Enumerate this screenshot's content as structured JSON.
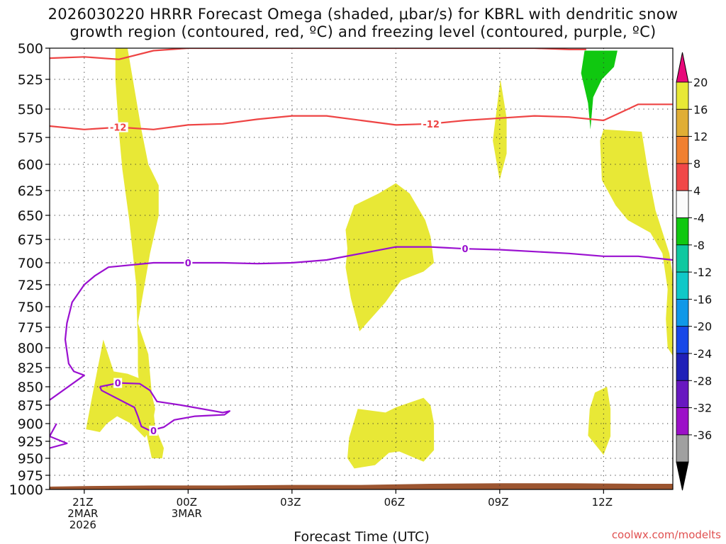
{
  "title": {
    "line1": "2026030220 HRRR Forecast Omega (shaded, μbar/s) for KBRL with dendritic snow",
    "line2": "growth region (contoured, red, ºC) and freezing level (contoured, purple, ºC)"
  },
  "credit": "coolwx.com/modelts",
  "chart_data": {
    "type": "contour-timeheight",
    "title": "2026030220 HRRR Forecast Omega (shaded, μbar/s) for KBRL with dendritic snow growth region (contoured, red, ºC) and freezing level (contoured, purple, ºC)",
    "xlabel": "Forecast Time (UTC)",
    "ylabel": "Pressure (hPa)",
    "ylim": [
      1000,
      500
    ],
    "xlim_hours": [
      -1,
      17
    ],
    "x_ticks": [
      {
        "hour": 0,
        "lines": [
          "21Z",
          "2MAR",
          "2026"
        ]
      },
      {
        "hour": 3,
        "lines": [
          "00Z",
          "3MAR"
        ]
      },
      {
        "hour": 6,
        "lines": [
          "03Z"
        ]
      },
      {
        "hour": 9,
        "lines": [
          "06Z"
        ]
      },
      {
        "hour": 12,
        "lines": [
          "09Z"
        ]
      },
      {
        "hour": 15,
        "lines": [
          "12Z"
        ]
      }
    ],
    "y_ticks": [
      500,
      525,
      550,
      575,
      600,
      625,
      650,
      675,
      700,
      725,
      750,
      775,
      800,
      825,
      850,
      875,
      900,
      925,
      950,
      975,
      1000
    ],
    "grid": true,
    "colorbar": {
      "labels": [
        "20",
        "16",
        "12",
        "8",
        "4",
        "-4",
        "-8",
        "-12",
        "-16",
        "-20",
        "-24",
        "-28",
        "-32",
        "-36"
      ],
      "colors": [
        "#e8e836",
        "#e0ae35",
        "#f08030",
        "#f04848",
        "#fbfbfb",
        "#10c810",
        "#10c8a0",
        "#10c8c8",
        "#1098e8",
        "#1848e8",
        "#2020b8",
        "#6818c0",
        "#9c10c8",
        "#a0a0a0"
      ],
      "under_color": "#000000",
      "over_color": "#e8087a"
    },
    "shaded_regions": [
      {
        "name": "upward-motion-col-01z",
        "level": "4 to 8",
        "points": [
          [
            0.9,
            500
          ],
          [
            1.25,
            500
          ],
          [
            1.65,
            568
          ],
          [
            1.85,
            600
          ],
          [
            2.15,
            620
          ],
          [
            2.15,
            650
          ],
          [
            1.9,
            690
          ],
          [
            1.55,
            770
          ],
          [
            1.85,
            808
          ],
          [
            1.95,
            860
          ],
          [
            2.05,
            905
          ],
          [
            2.3,
            935
          ],
          [
            2.25,
            950
          ],
          [
            1.95,
            950
          ],
          [
            1.8,
            915
          ],
          [
            1.65,
            875
          ],
          [
            1.55,
            830
          ],
          [
            1.55,
            800
          ],
          [
            1.5,
            725
          ],
          [
            1.3,
            655
          ],
          [
            1.1,
            605
          ],
          [
            1.0,
            570
          ],
          [
            0.9,
            525
          ]
        ]
      },
      {
        "name": "upward-motion-0630z",
        "level": "4 to 8",
        "points": [
          [
            7.8,
            640
          ],
          [
            8.5,
            628
          ],
          [
            9.0,
            618
          ],
          [
            9.4,
            628
          ],
          [
            9.85,
            655
          ],
          [
            10.0,
            672
          ],
          [
            10.1,
            700
          ],
          [
            9.8,
            710
          ],
          [
            9.15,
            720
          ],
          [
            8.7,
            745
          ],
          [
            7.95,
            780
          ],
          [
            7.7,
            740
          ],
          [
            7.55,
            705
          ],
          [
            7.6,
            685
          ],
          [
            7.55,
            665
          ]
        ]
      },
      {
        "name": "upward-motion-0930z",
        "level": "4 to 8",
        "points": [
          [
            7.9,
            880
          ],
          [
            8.7,
            885
          ],
          [
            9.0,
            878
          ],
          [
            9.8,
            865
          ],
          [
            10.0,
            875
          ],
          [
            10.1,
            900
          ],
          [
            10.1,
            938
          ],
          [
            9.8,
            955
          ],
          [
            9.1,
            940
          ],
          [
            8.8,
            942
          ],
          [
            8.4,
            960
          ],
          [
            7.8,
            965
          ],
          [
            7.6,
            950
          ],
          [
            7.65,
            920
          ]
        ]
      },
      {
        "name": "upward-motion-1145z",
        "level": "4 to 8",
        "points": [
          [
            12.02,
            525
          ],
          [
            12.2,
            558
          ],
          [
            12.2,
            590
          ],
          [
            12.0,
            615
          ],
          [
            11.8,
            578
          ]
        ]
      },
      {
        "name": "upward-motion-1445z",
        "level": "4 to 8",
        "points": [
          [
            15.0,
            568
          ],
          [
            16.1,
            570
          ],
          [
            16.3,
            610
          ],
          [
            16.5,
            645
          ],
          [
            16.9,
            690
          ],
          [
            17.0,
            715
          ],
          [
            17.0,
            810
          ],
          [
            16.85,
            800
          ],
          [
            16.8,
            765
          ],
          [
            16.85,
            730
          ],
          [
            16.7,
            690
          ],
          [
            16.35,
            668
          ],
          [
            15.7,
            655
          ],
          [
            15.35,
            640
          ],
          [
            14.95,
            615
          ],
          [
            14.9,
            578
          ]
        ]
      },
      {
        "name": "upward-motion-2230z",
        "level": "4 to 8",
        "points": [
          [
            0.2,
            870
          ],
          [
            0.55,
            790
          ],
          [
            0.85,
            830
          ],
          [
            1.25,
            833
          ],
          [
            1.65,
            840
          ],
          [
            1.95,
            860
          ],
          [
            2.05,
            880
          ],
          [
            1.95,
            905
          ],
          [
            1.75,
            920
          ],
          [
            1.35,
            900
          ],
          [
            0.95,
            890
          ],
          [
            0.65,
            900
          ],
          [
            0.45,
            912
          ],
          [
            0.05,
            908
          ]
        ]
      },
      {
        "name": "upward-motion-1430z",
        "level": "4 to 8",
        "points": [
          [
            14.6,
            880
          ],
          [
            14.75,
            858
          ],
          [
            15.1,
            850
          ],
          [
            15.2,
            880
          ],
          [
            15.2,
            918
          ],
          [
            15.0,
            945
          ],
          [
            14.55,
            917
          ]
        ]
      },
      {
        "name": "downward-motion-1600z",
        "level": "-4 to -8",
        "points": [
          [
            14.45,
            502
          ],
          [
            15.4,
            502
          ],
          [
            15.3,
            515
          ],
          [
            14.95,
            525
          ],
          [
            14.7,
            540
          ],
          [
            14.62,
            568
          ],
          [
            14.55,
            545
          ],
          [
            14.35,
            520
          ]
        ]
      }
    ],
    "contours": [
      {
        "name": "dgz-top",
        "value": -12,
        "color": "#ee4444",
        "points": [
          [
            -1,
            508
          ],
          [
            0.0,
            507
          ],
          [
            1.0,
            509
          ],
          [
            2.0,
            502
          ],
          [
            3.0,
            500
          ],
          [
            5.0,
            500
          ],
          [
            8.0,
            500
          ],
          [
            10.0,
            500
          ],
          [
            12.0,
            500
          ],
          [
            13.0,
            500
          ],
          [
            14.0,
            501
          ],
          [
            14.5,
            501
          ]
        ]
      },
      {
        "name": "dgz-bottom",
        "value": -12,
        "color": "#ee4444",
        "label": "-12",
        "points": [
          [
            -1,
            565
          ],
          [
            0.0,
            568
          ],
          [
            1.0,
            566
          ],
          [
            2.0,
            568
          ],
          [
            3.0,
            564
          ],
          [
            4.0,
            563
          ],
          [
            5.0,
            559
          ],
          [
            6.0,
            556
          ],
          [
            7.0,
            556
          ],
          [
            8.0,
            560
          ],
          [
            9.0,
            564
          ],
          [
            10.0,
            563
          ],
          [
            11.0,
            560
          ],
          [
            12.0,
            558
          ],
          [
            13.0,
            556
          ],
          [
            14.0,
            557
          ],
          [
            15.0,
            560
          ],
          [
            16.0,
            546
          ],
          [
            17.0,
            546
          ]
        ]
      },
      {
        "name": "freezing-level-main",
        "value": 0,
        "color": "#9a10d0",
        "label": "0",
        "points": [
          [
            -1,
            868
          ],
          [
            0.0,
            835
          ],
          [
            -0.3,
            830
          ],
          [
            -0.45,
            820
          ],
          [
            -0.55,
            790
          ],
          [
            -0.5,
            770
          ],
          [
            -0.35,
            745
          ],
          [
            0.0,
            725
          ],
          [
            0.3,
            715
          ],
          [
            0.7,
            705
          ],
          [
            2.0,
            700
          ],
          [
            3.0,
            700
          ],
          [
            4.0,
            700
          ],
          [
            5.0,
            701
          ],
          [
            6.0,
            700
          ],
          [
            7.0,
            697
          ],
          [
            8.0,
            690
          ],
          [
            9.0,
            683
          ],
          [
            10.0,
            683
          ],
          [
            11.0,
            685
          ],
          [
            12.0,
            686
          ],
          [
            13.0,
            688
          ],
          [
            14.0,
            690
          ],
          [
            15.0,
            693
          ],
          [
            16.0,
            693
          ],
          [
            17.0,
            697
          ]
        ]
      },
      {
        "name": "freezing-level-lower",
        "value": 0,
        "color": "#9a10d0",
        "points": [
          [
            -1,
            935
          ],
          [
            -0.5,
            928
          ],
          [
            -1.0,
            918
          ],
          [
            -0.8,
            900
          ]
        ]
      },
      {
        "name": "freezing-level-loop",
        "value": 0,
        "color": "#9a10d0",
        "label": "0",
        "points": [
          [
            0.45,
            850
          ],
          [
            1.0,
            845
          ],
          [
            1.6,
            846
          ],
          [
            1.9,
            855
          ],
          [
            2.1,
            870
          ],
          [
            2.8,
            875
          ],
          [
            4.0,
            885
          ],
          [
            4.2,
            883
          ],
          [
            4.05,
            888
          ],
          [
            3.2,
            890
          ],
          [
            2.6,
            895
          ],
          [
            2.3,
            905
          ],
          [
            1.9,
            910
          ],
          [
            1.65,
            904
          ],
          [
            1.55,
            890
          ],
          [
            1.45,
            878
          ],
          [
            1.2,
            872
          ],
          [
            0.5,
            855
          ],
          [
            0.45,
            850
          ]
        ]
      }
    ],
    "contour_labels": [
      {
        "text": "-12",
        "hour": 0.98,
        "p": 566,
        "color": "#ee4444"
      },
      {
        "text": "-12",
        "hour": 10.02,
        "p": 563,
        "color": "#ee4444"
      },
      {
        "text": "0",
        "hour": 3.0,
        "p": 700,
        "color": "#9a10d0"
      },
      {
        "text": "0",
        "hour": 11.0,
        "p": 685,
        "color": "#9a10d0"
      },
      {
        "text": "0",
        "hour": 0.97,
        "p": 845,
        "color": "#9a10d0"
      },
      {
        "text": "0",
        "hour": 2.0,
        "p": 910,
        "color": "#9a10d0"
      }
    ],
    "terrain": {
      "color": "#9c5530",
      "points": [
        [
          -1,
          995
        ],
        [
          0,
          994
        ],
        [
          2,
          993
        ],
        [
          4,
          993
        ],
        [
          6,
          992
        ],
        [
          8,
          992
        ],
        [
          10,
          990
        ],
        [
          12,
          989
        ],
        [
          14,
          989
        ],
        [
          16,
          990
        ],
        [
          17,
          990
        ]
      ]
    }
  }
}
